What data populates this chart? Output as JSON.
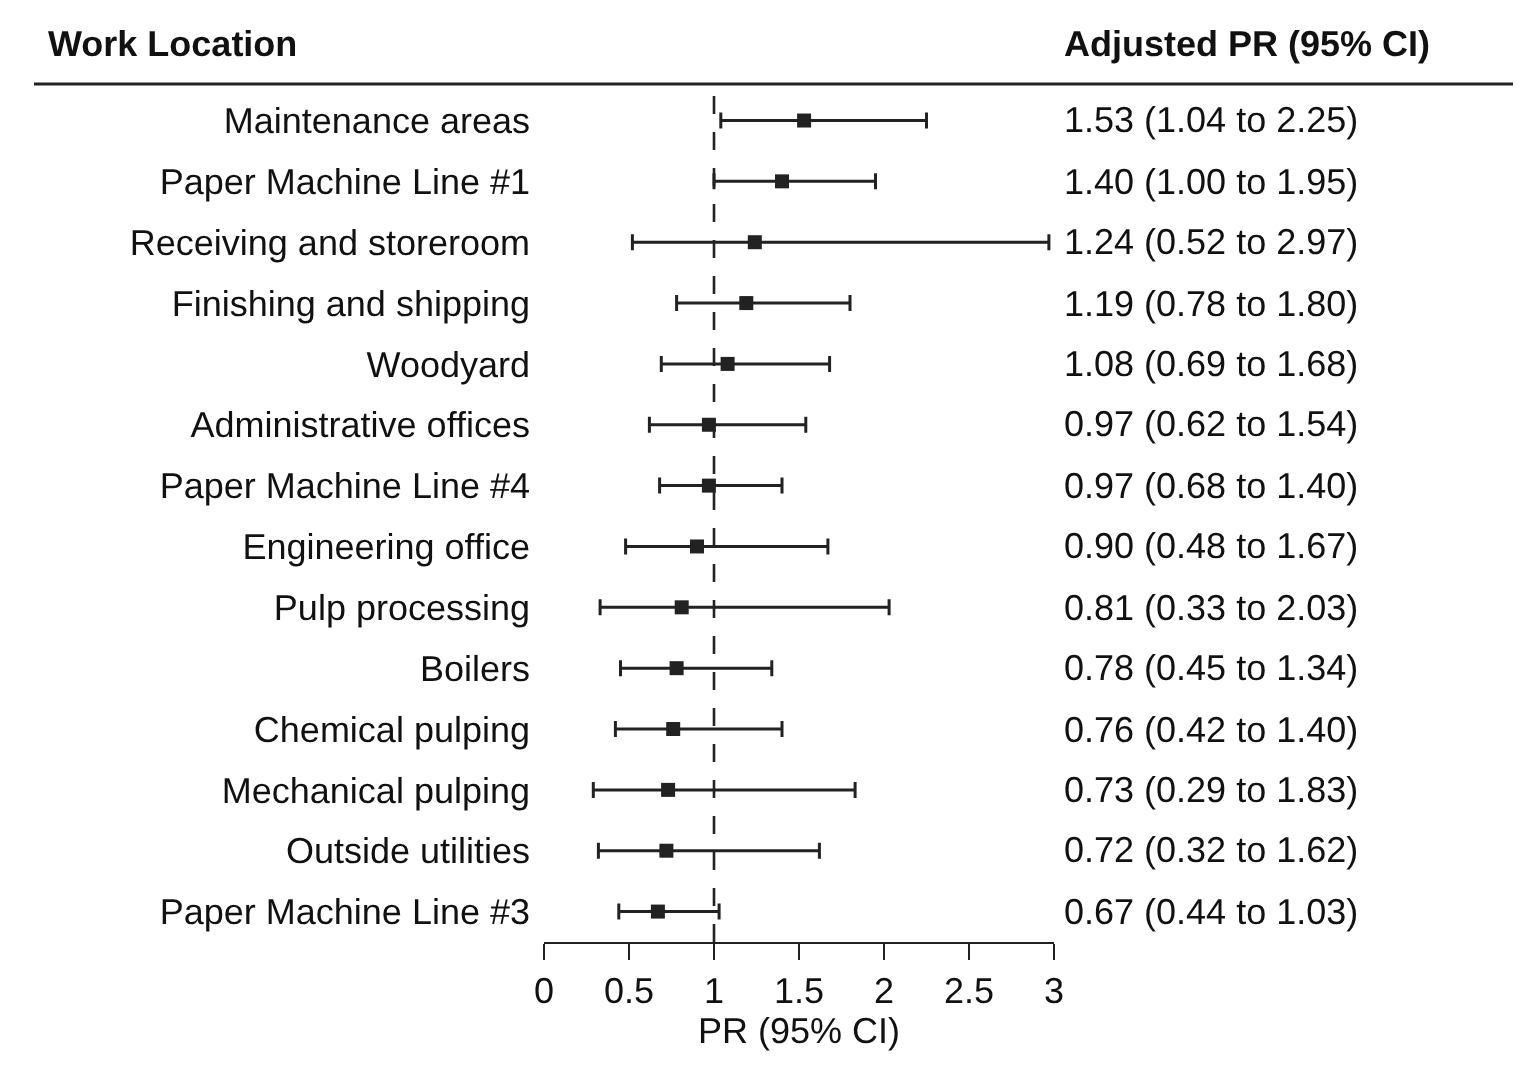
{
  "chart_data": {
    "type": "scatter",
    "orientation": "horizontal",
    "ylabel": "Work Location",
    "xlabel": "PR (95% CI)",
    "annotations": [
      "Adjusted PR (95% CI)"
    ],
    "categories": [
      "Maintenance areas",
      "Paper Machine Line #1",
      "Receiving and storeroom",
      "Finishing and shipping",
      "Woodyard",
      "Administrative offices",
      "Paper Machine Line #4",
      "Engineering office",
      "Pulp processing",
      "Boilers",
      "Chemical pulping",
      "Mechanical pulping",
      "Outside utilities",
      "Paper Machine Line #3"
    ],
    "values": [
      1.53,
      1.4,
      1.24,
      1.19,
      1.08,
      0.97,
      0.97,
      0.9,
      0.81,
      0.78,
      0.76,
      0.73,
      0.72,
      0.67
    ],
    "errors": [
      [
        1.04,
        2.25
      ],
      [
        1.0,
        1.95
      ],
      [
        0.52,
        2.97
      ],
      [
        0.78,
        1.8
      ],
      [
        0.69,
        1.68
      ],
      [
        0.62,
        1.54
      ],
      [
        0.68,
        1.4
      ],
      [
        0.48,
        1.67
      ],
      [
        0.33,
        2.03
      ],
      [
        0.45,
        1.34
      ],
      [
        0.42,
        1.4
      ],
      [
        0.29,
        1.83
      ],
      [
        0.32,
        1.62
      ],
      [
        0.44,
        1.03
      ]
    ],
    "value_labels": [
      "1.53 (1.04 to 2.25)",
      "1.40 (1.00 to 1.95)",
      "1.24 (0.52 to 2.97)",
      "1.19 (0.78 to 1.80)",
      "1.08 (0.69 to 1.68)",
      "0.97 (0.62 to 1.54)",
      "0.97 (0.68 to 1.40)",
      "0.90 (0.48 to 1.67)",
      "0.81 (0.33 to 2.03)",
      "0.78 (0.45 to 1.34)",
      "0.76 (0.42 to 1.40)",
      "0.73 (0.29 to 1.83)",
      "0.72 (0.32 to 1.62)",
      "0.67 (0.44 to 1.03)"
    ],
    "color": "#222222",
    "marker": "square",
    "xlim": [
      0,
      3
    ],
    "xticks": [
      0,
      0.5,
      1,
      1.5,
      2,
      2.5,
      3
    ],
    "grid": false,
    "tick_labels": "x",
    "ref_lines": [
      {
        "axis": "x",
        "value": 1,
        "line_style": "dashed",
        "color": "#222222"
      }
    ]
  }
}
